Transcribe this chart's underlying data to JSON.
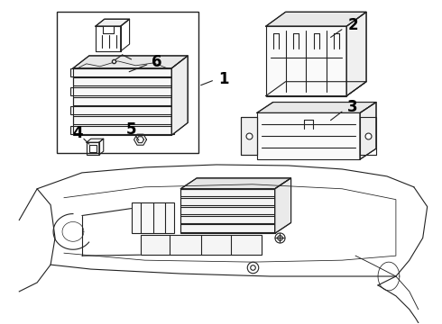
{
  "bg_color": "#ffffff",
  "line_color": "#222222",
  "label_color": "#000000",
  "figsize": [
    4.9,
    3.6
  ],
  "dpi": 100
}
